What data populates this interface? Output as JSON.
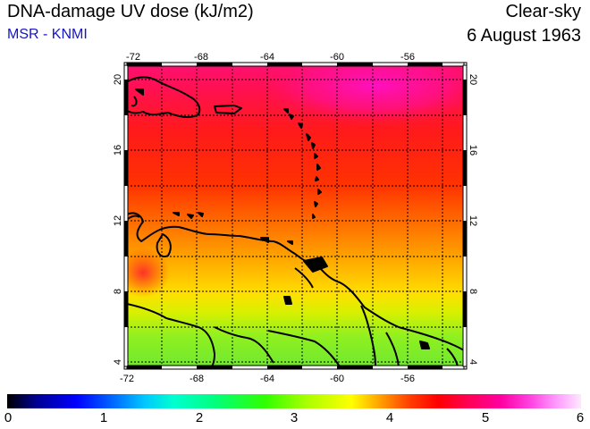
{
  "header": {
    "title": "DNA-damage UV dose (kJ/m2)",
    "credit": "MSR - KNMI",
    "condition": "Clear-sky",
    "date": "6 August 1963"
  },
  "map": {
    "lon_range": [
      -72,
      -53
    ],
    "lat_range": [
      3.5,
      20.5
    ],
    "grid_lon_step": 2,
    "grid_lat_step": 2,
    "lon_ticks": [
      "-72",
      "-68",
      "-64",
      "-60",
      "-56"
    ],
    "lat_ticks": [
      "4",
      "8",
      "12",
      "16",
      "20"
    ]
  },
  "colorbar": {
    "min": 0,
    "max": 6,
    "tick_labels": [
      "0",
      "1",
      "2",
      "3",
      "4",
      "5",
      "6"
    ]
  },
  "colors": {
    "coast": "#000000",
    "grid": "#000000",
    "credit": "#1414c8"
  }
}
